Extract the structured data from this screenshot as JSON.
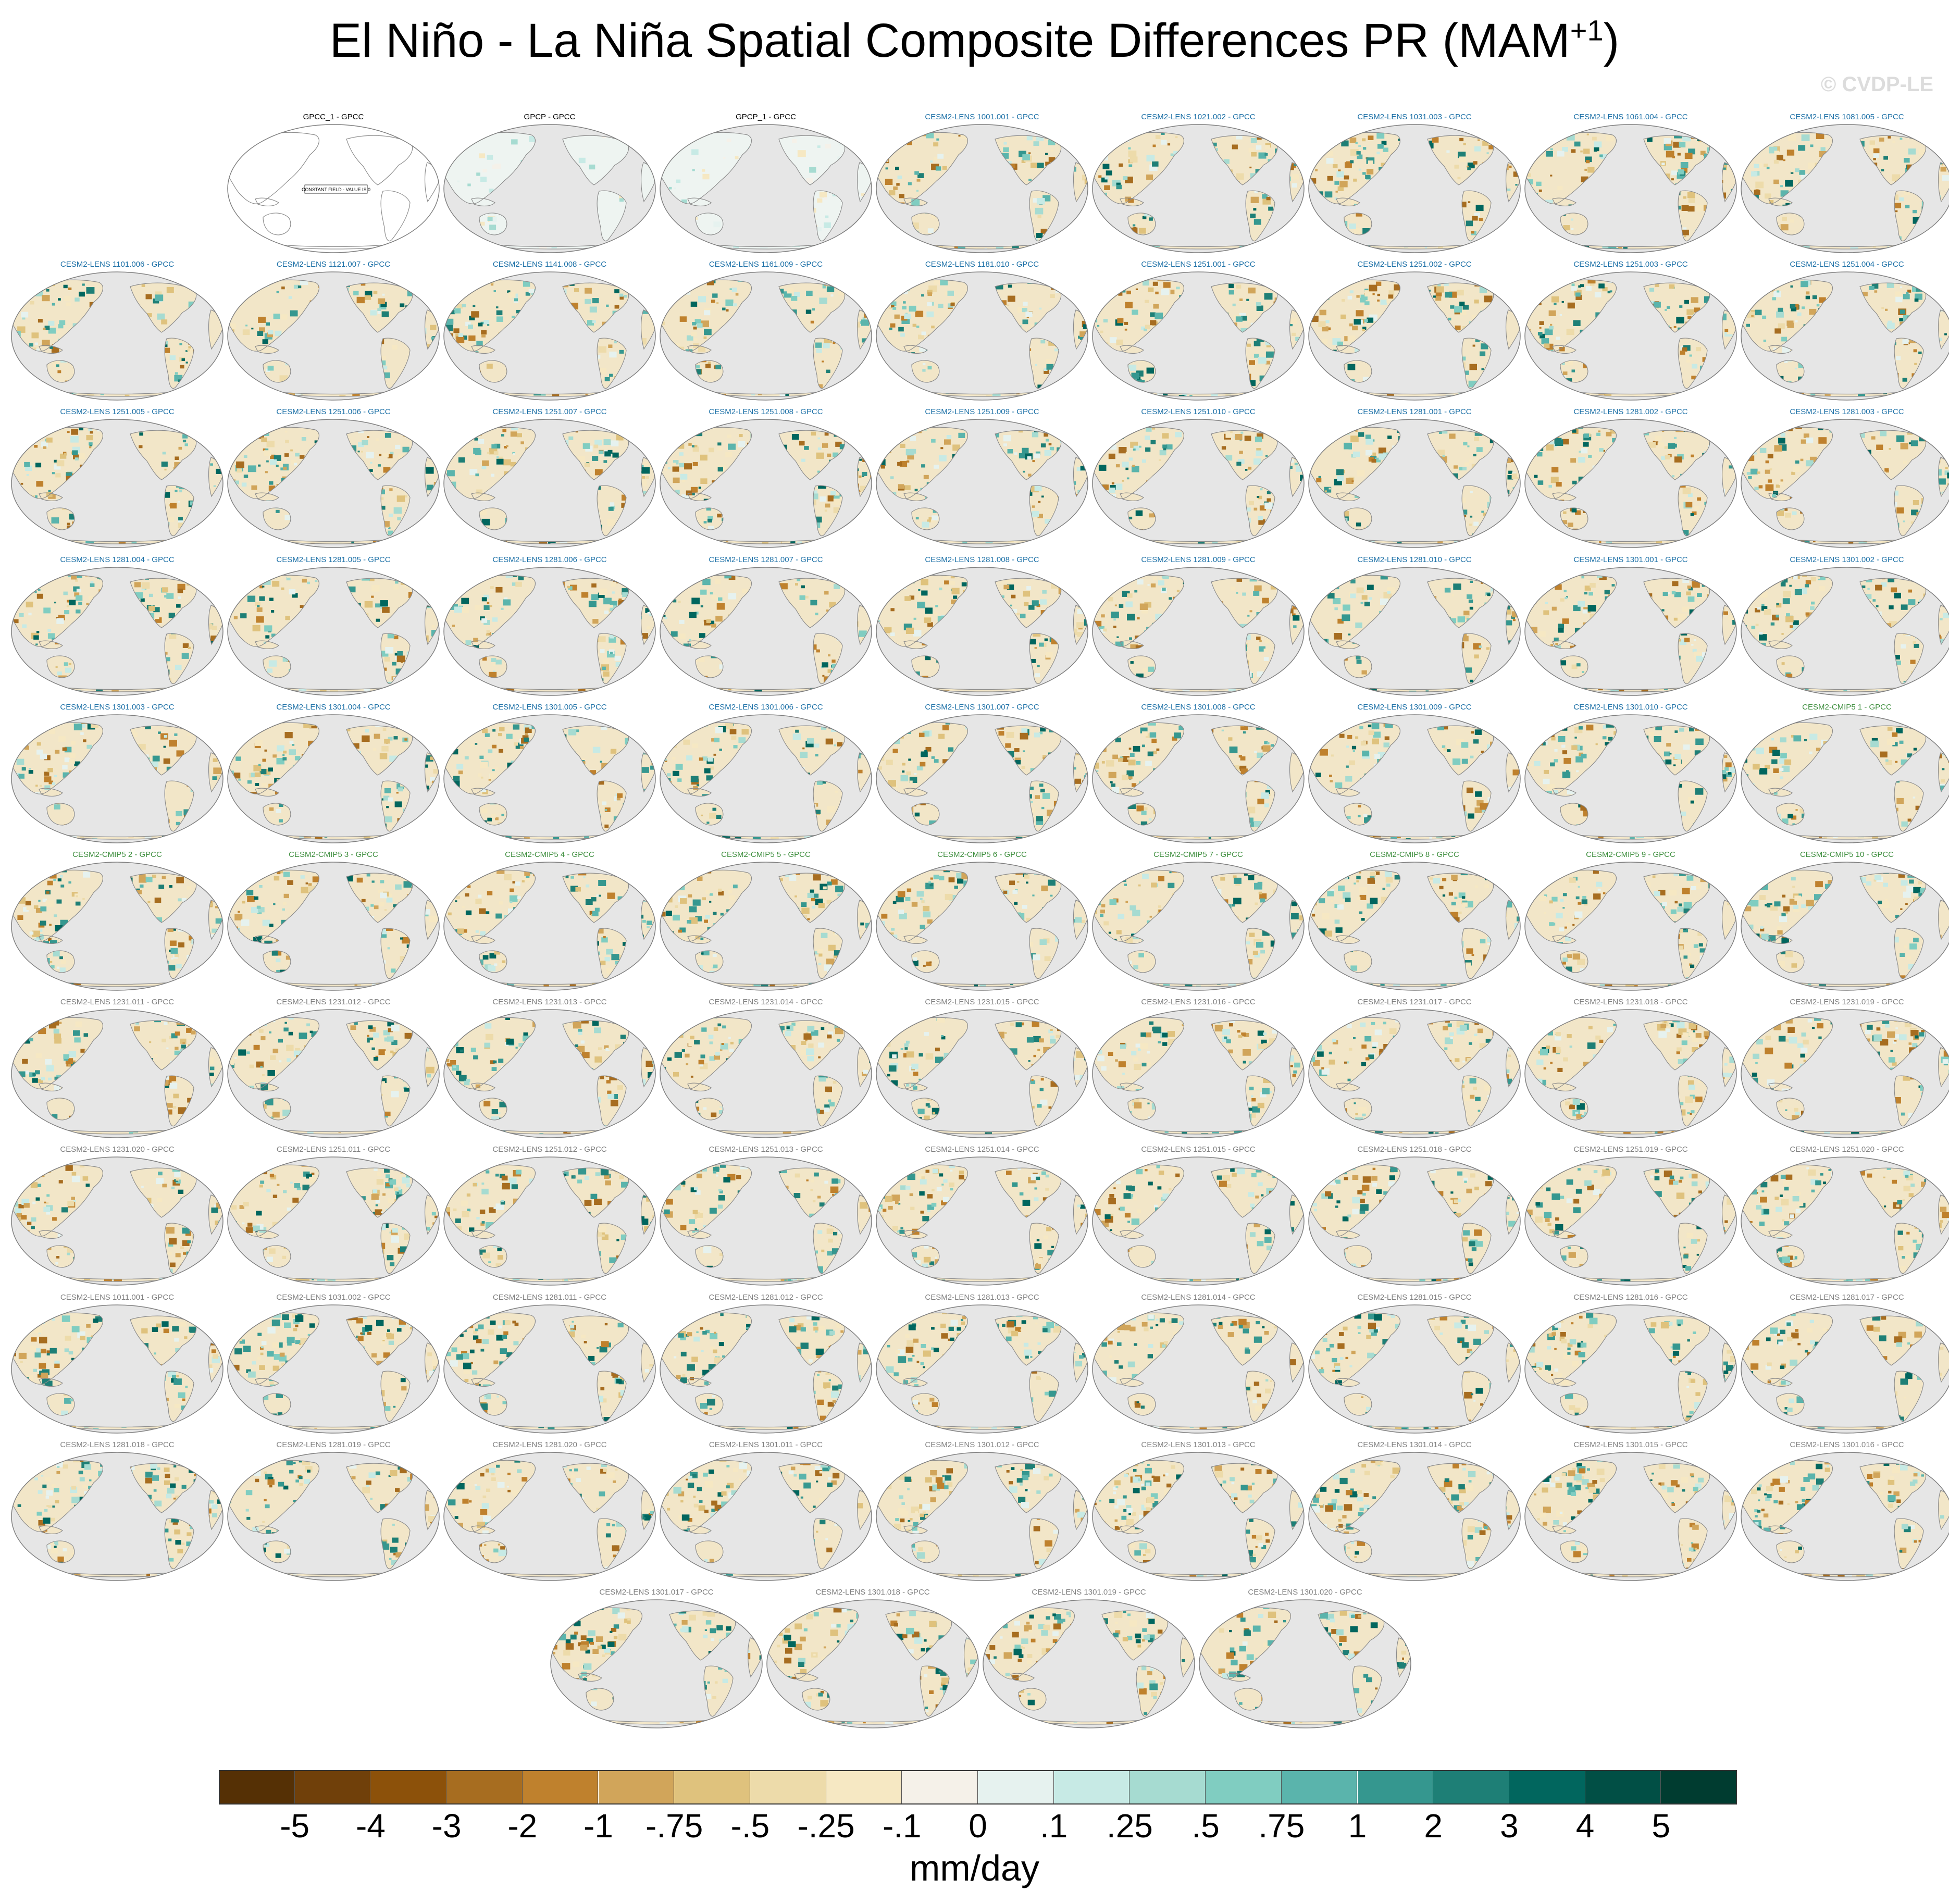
{
  "title_main": "El Niño - La Niña Spatial Composite Differences PR (MAM",
  "title_sup": "+1",
  "title_end": ")",
  "watermark": "© CVDP-LE",
  "constant_field_label": "CONSTANT FIELD - VALUE IS 0",
  "colors": {
    "observation_title": "#000000",
    "cesm2_lens_title": "#1a6fa6",
    "cmip5_title": "#3f8f3f",
    "lens_extra_title": "#808080",
    "ocean": "#e6e6e6",
    "coast": "#8c8c8c"
  },
  "panels": [
    {
      "label": "GPCC_1 - GPCC",
      "group": "obs",
      "empty": true
    },
    {
      "label": "GPCP - GPCC",
      "group": "obs"
    },
    {
      "label": "GPCP_1 - GPCC",
      "group": "obs"
    },
    {
      "label": "CESM2-LENS 1001.001 - GPCC",
      "group": "lens"
    },
    {
      "label": "CESM2-LENS 1021.002 - GPCC",
      "group": "lens"
    },
    {
      "label": "CESM2-LENS 1031.003 - GPCC",
      "group": "lens"
    },
    {
      "label": "CESM2-LENS 1061.004 - GPCC",
      "group": "lens"
    },
    {
      "label": "CESM2-LENS 1081.005 - GPCC",
      "group": "lens"
    },
    {
      "label": "CESM2-LENS 1101.006 - GPCC",
      "group": "lens"
    },
    {
      "label": "CESM2-LENS 1121.007 - GPCC",
      "group": "lens"
    },
    {
      "label": "CESM2-LENS 1141.008 - GPCC",
      "group": "lens"
    },
    {
      "label": "CESM2-LENS 1161.009 - GPCC",
      "group": "lens"
    },
    {
      "label": "CESM2-LENS 1181.010 - GPCC",
      "group": "lens"
    },
    {
      "label": "CESM2-LENS 1251.001 - GPCC",
      "group": "lens"
    },
    {
      "label": "CESM2-LENS 1251.002 - GPCC",
      "group": "lens"
    },
    {
      "label": "CESM2-LENS 1251.003 - GPCC",
      "group": "lens"
    },
    {
      "label": "CESM2-LENS 1251.004 - GPCC",
      "group": "lens"
    },
    {
      "label": "CESM2-LENS 1251.005 - GPCC",
      "group": "lens"
    },
    {
      "label": "CESM2-LENS 1251.006 - GPCC",
      "group": "lens"
    },
    {
      "label": "CESM2-LENS 1251.007 - GPCC",
      "group": "lens"
    },
    {
      "label": "CESM2-LENS 1251.008 - GPCC",
      "group": "lens"
    },
    {
      "label": "CESM2-LENS 1251.009 - GPCC",
      "group": "lens"
    },
    {
      "label": "CESM2-LENS 1251.010 - GPCC",
      "group": "lens"
    },
    {
      "label": "CESM2-LENS 1281.001 - GPCC",
      "group": "lens"
    },
    {
      "label": "CESM2-LENS 1281.002 - GPCC",
      "group": "lens"
    },
    {
      "label": "CESM2-LENS 1281.003 - GPCC",
      "group": "lens"
    },
    {
      "label": "CESM2-LENS 1281.004 - GPCC",
      "group": "lens"
    },
    {
      "label": "CESM2-LENS 1281.005 - GPCC",
      "group": "lens"
    },
    {
      "label": "CESM2-LENS 1281.006 - GPCC",
      "group": "lens"
    },
    {
      "label": "CESM2-LENS 1281.007 - GPCC",
      "group": "lens"
    },
    {
      "label": "CESM2-LENS 1281.008 - GPCC",
      "group": "lens"
    },
    {
      "label": "CESM2-LENS 1281.009 - GPCC",
      "group": "lens"
    },
    {
      "label": "CESM2-LENS 1281.010 - GPCC",
      "group": "lens"
    },
    {
      "label": "CESM2-LENS 1301.001 - GPCC",
      "group": "lens"
    },
    {
      "label": "CESM2-LENS 1301.002 - GPCC",
      "group": "lens"
    },
    {
      "label": "CESM2-LENS 1301.003 - GPCC",
      "group": "lens"
    },
    {
      "label": "CESM2-LENS 1301.004 - GPCC",
      "group": "lens"
    },
    {
      "label": "CESM2-LENS 1301.005 - GPCC",
      "group": "lens"
    },
    {
      "label": "CESM2-LENS 1301.006 - GPCC",
      "group": "lens"
    },
    {
      "label": "CESM2-LENS 1301.007 - GPCC",
      "group": "lens"
    },
    {
      "label": "CESM2-LENS 1301.008 - GPCC",
      "group": "lens"
    },
    {
      "label": "CESM2-LENS 1301.009 - GPCC",
      "group": "lens"
    },
    {
      "label": "CESM2-LENS 1301.010 - GPCC",
      "group": "lens"
    },
    {
      "label": "CESM2-CMIP5 1 - GPCC",
      "group": "cmip5"
    },
    {
      "label": "CESM2-CMIP5 2 - GPCC",
      "group": "cmip5"
    },
    {
      "label": "CESM2-CMIP5 3 - GPCC",
      "group": "cmip5"
    },
    {
      "label": "CESM2-CMIP5 4 - GPCC",
      "group": "cmip5"
    },
    {
      "label": "CESM2-CMIP5 5 - GPCC",
      "group": "cmip5"
    },
    {
      "label": "CESM2-CMIP5 6 - GPCC",
      "group": "cmip5"
    },
    {
      "label": "CESM2-CMIP5 7 - GPCC",
      "group": "cmip5"
    },
    {
      "label": "CESM2-CMIP5 8 - GPCC",
      "group": "cmip5"
    },
    {
      "label": "CESM2-CMIP5 9 - GPCC",
      "group": "cmip5"
    },
    {
      "label": "CESM2-CMIP5 10 - GPCC",
      "group": "cmip5"
    },
    {
      "label": "CESM2-LENS 1231.011 - GPCC",
      "group": "extra"
    },
    {
      "label": "CESM2-LENS 1231.012 - GPCC",
      "group": "extra"
    },
    {
      "label": "CESM2-LENS 1231.013 - GPCC",
      "group": "extra"
    },
    {
      "label": "CESM2-LENS 1231.014 - GPCC",
      "group": "extra"
    },
    {
      "label": "CESM2-LENS 1231.015 - GPCC",
      "group": "extra"
    },
    {
      "label": "CESM2-LENS 1231.016 - GPCC",
      "group": "extra"
    },
    {
      "label": "CESM2-LENS 1231.017 - GPCC",
      "group": "extra"
    },
    {
      "label": "CESM2-LENS 1231.018 - GPCC",
      "group": "extra"
    },
    {
      "label": "CESM2-LENS 1231.019 - GPCC",
      "group": "extra"
    },
    {
      "label": "CESM2-LENS 1231.020 - GPCC",
      "group": "extra"
    },
    {
      "label": "CESM2-LENS 1251.011 - GPCC",
      "group": "extra"
    },
    {
      "label": "CESM2-LENS 1251.012 - GPCC",
      "group": "extra"
    },
    {
      "label": "CESM2-LENS 1251.013 - GPCC",
      "group": "extra"
    },
    {
      "label": "CESM2-LENS 1251.014 - GPCC",
      "group": "extra"
    },
    {
      "label": "CESM2-LENS 1251.015 - GPCC",
      "group": "extra"
    },
    {
      "label": "CESM2-LENS 1251.018 - GPCC",
      "group": "extra"
    },
    {
      "label": "CESM2-LENS 1251.019 - GPCC",
      "group": "extra"
    },
    {
      "label": "CESM2-LENS 1251.020 - GPCC",
      "group": "extra"
    },
    {
      "label": "CESM2-LENS 1011.001 - GPCC",
      "group": "extra"
    },
    {
      "label": "CESM2-LENS 1031.002 - GPCC",
      "group": "extra"
    },
    {
      "label": "CESM2-LENS 1281.011 - GPCC",
      "group": "extra"
    },
    {
      "label": "CESM2-LENS 1281.012 - GPCC",
      "group": "extra"
    },
    {
      "label": "CESM2-LENS 1281.013 - GPCC",
      "group": "extra"
    },
    {
      "label": "CESM2-LENS 1281.014 - GPCC",
      "group": "extra"
    },
    {
      "label": "CESM2-LENS 1281.015 - GPCC",
      "group": "extra"
    },
    {
      "label": "CESM2-LENS 1281.016 - GPCC",
      "group": "extra"
    },
    {
      "label": "CESM2-LENS 1281.017 - GPCC",
      "group": "extra"
    },
    {
      "label": "CESM2-LENS 1281.018 - GPCC",
      "group": "extra"
    },
    {
      "label": "CESM2-LENS 1281.019 - GPCC",
      "group": "extra"
    },
    {
      "label": "CESM2-LENS 1281.020 - GPCC",
      "group": "extra"
    },
    {
      "label": "CESM2-LENS 1301.011 - GPCC",
      "group": "extra"
    },
    {
      "label": "CESM2-LENS 1301.012 - GPCC",
      "group": "extra"
    },
    {
      "label": "CESM2-LENS 1301.013 - GPCC",
      "group": "extra"
    },
    {
      "label": "CESM2-LENS 1301.014 - GPCC",
      "group": "extra"
    },
    {
      "label": "CESM2-LENS 1301.015 - GPCC",
      "group": "extra"
    },
    {
      "label": "CESM2-LENS 1301.016 - GPCC",
      "group": "extra"
    },
    {
      "label": "CESM2-LENS 1301.017 - GPCC",
      "group": "extra"
    },
    {
      "label": "CESM2-LENS 1301.018 - GPCC",
      "group": "extra"
    },
    {
      "label": "CESM2-LENS 1301.019 - GPCC",
      "group": "extra"
    },
    {
      "label": "CESM2-LENS 1301.020 - GPCC",
      "group": "extra"
    }
  ],
  "colorbar": {
    "labels": [
      "-5",
      "-4",
      "-3",
      "-2",
      "-1",
      "-.75",
      "-.5",
      "-.25",
      "-.1",
      "0",
      ".1",
      ".25",
      ".5",
      ".75",
      "1",
      "2",
      "3",
      "4",
      "5"
    ],
    "colors": [
      "#553005",
      "#70400a",
      "#8c510a",
      "#a76d20",
      "#bf812d",
      "#d1a55a",
      "#dfc27d",
      "#eddbaa",
      "#f6e8c3",
      "#f5f1e9",
      "#e6f2ef",
      "#c7eae5",
      "#a6dbd1",
      "#80cdc1",
      "#5ab4ac",
      "#35978f",
      "#1e7f76",
      "#01665e",
      "#014f45",
      "#003c30"
    ],
    "units": "mm/day"
  }
}
